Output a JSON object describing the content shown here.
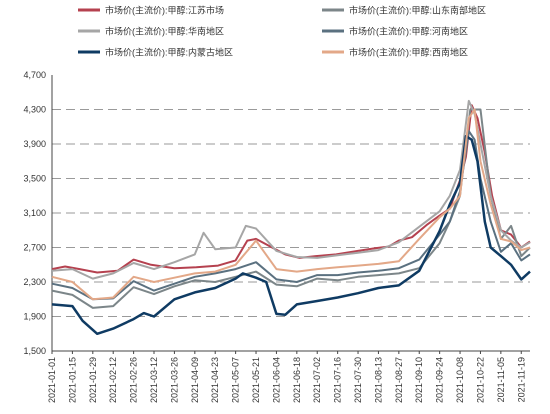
{
  "chart_data": {
    "type": "line",
    "title": "",
    "xlabel": "",
    "ylabel": "",
    "ylim": [
      1500,
      4700
    ],
    "y_ticks": [
      "4,700",
      "4,300",
      "3,900",
      "3,500",
      "3,100",
      "2,700",
      "2,300",
      "1,900",
      "1,500"
    ],
    "y_tick_values": [
      4700,
      4300,
      3900,
      3500,
      3100,
      2700,
      2300,
      1900,
      1500
    ],
    "x_ticks": [
      "2021-01-01",
      "2021-01-15",
      "2021-01-29",
      "2021-02-12",
      "2021-02-26",
      "2021-03-12",
      "2021-03-26",
      "2021-04-09",
      "2021-04-23",
      "2021-05-07",
      "2021-05-21",
      "2021-06-04",
      "2021-06-18",
      "2021-07-02",
      "2021-07-16",
      "2021-07-30",
      "2021-08-13",
      "2021-08-27",
      "2021-09-10",
      "2021-09-24",
      "2021-10-08",
      "2021-10-22",
      "2021-11-05",
      "2021-11-19"
    ],
    "grid": "horizontal dashed",
    "legend_position": "top",
    "series": [
      {
        "name": "市场价(主流价):甲醇:江苏市场",
        "color": "#b5414f",
        "width": 2,
        "x": [
          "2021-01-01",
          "2021-01-10",
          "2021-01-20",
          "2021-02-01",
          "2021-02-15",
          "2021-02-26",
          "2021-03-10",
          "2021-03-26",
          "2021-04-10",
          "2021-04-25",
          "2021-05-07",
          "2021-05-15",
          "2021-05-21",
          "2021-06-01",
          "2021-06-10",
          "2021-06-20",
          "2021-07-01",
          "2021-07-15",
          "2021-07-30",
          "2021-08-10",
          "2021-08-20",
          "2021-08-27",
          "2021-09-05",
          "2021-09-15",
          "2021-09-24",
          "2021-10-01",
          "2021-10-08",
          "2021-10-12",
          "2021-10-16",
          "2021-10-20",
          "2021-10-25",
          "2021-10-30",
          "2021-11-05",
          "2021-11-12",
          "2021-11-19",
          "2021-11-25"
        ],
        "y": [
          2450,
          2480,
          2450,
          2410,
          2430,
          2560,
          2500,
          2460,
          2470,
          2490,
          2550,
          2780,
          2800,
          2700,
          2620,
          2580,
          2600,
          2620,
          2660,
          2690,
          2710,
          2780,
          2820,
          2960,
          3070,
          3150,
          3480,
          3750,
          4350,
          4200,
          3800,
          3300,
          2900,
          2850,
          2700,
          2770
        ]
      },
      {
        "name": "市场价(主流价):甲醇:山东南部地区",
        "color": "#7c8689",
        "width": 2,
        "x": [
          "2021-01-01",
          "2021-01-15",
          "2021-01-29",
          "2021-02-12",
          "2021-02-26",
          "2021-03-12",
          "2021-03-26",
          "2021-04-09",
          "2021-04-23",
          "2021-05-07",
          "2021-05-21",
          "2021-06-04",
          "2021-06-18",
          "2021-07-02",
          "2021-07-16",
          "2021-07-30",
          "2021-08-13",
          "2021-08-27",
          "2021-09-10",
          "2021-09-24",
          "2021-10-01",
          "2021-10-08",
          "2021-10-12",
          "2021-10-15",
          "2021-10-19",
          "2021-10-22",
          "2021-10-29",
          "2021-11-05",
          "2021-11-12",
          "2021-11-19",
          "2021-11-25"
        ],
        "y": [
          2200,
          2150,
          2000,
          2020,
          2240,
          2160,
          2250,
          2320,
          2300,
          2360,
          2420,
          2270,
          2250,
          2340,
          2320,
          2360,
          2380,
          2400,
          2460,
          2750,
          3000,
          3300,
          3900,
          4300,
          4300,
          4300,
          3300,
          2800,
          2950,
          2600,
          2700
        ]
      },
      {
        "name": "市场价(主流价):甲醇:华南地区",
        "color": "#a6a6a6",
        "width": 2,
        "x": [
          "2021-01-01",
          "2021-01-15",
          "2021-01-29",
          "2021-02-12",
          "2021-02-26",
          "2021-03-12",
          "2021-03-26",
          "2021-04-09",
          "2021-04-15",
          "2021-04-23",
          "2021-05-07",
          "2021-05-14",
          "2021-05-21",
          "2021-06-04",
          "2021-06-18",
          "2021-07-02",
          "2021-07-16",
          "2021-07-30",
          "2021-08-13",
          "2021-08-27",
          "2021-09-10",
          "2021-09-24",
          "2021-10-01",
          "2021-10-08",
          "2021-10-14",
          "2021-10-18",
          "2021-10-22",
          "2021-10-29",
          "2021-11-05",
          "2021-11-12",
          "2021-11-19",
          "2021-11-25"
        ],
        "y": [
          2430,
          2450,
          2340,
          2400,
          2520,
          2450,
          2530,
          2620,
          2870,
          2680,
          2700,
          2950,
          2920,
          2660,
          2590,
          2580,
          2610,
          2640,
          2670,
          2760,
          2940,
          3120,
          3300,
          3600,
          4400,
          4250,
          3900,
          3300,
          2900,
          2780,
          2700,
          2760
        ]
      },
      {
        "name": "市场价(主流价):甲醇:河南地区",
        "color": "#5b7180",
        "width": 2,
        "x": [
          "2021-01-01",
          "2021-01-15",
          "2021-01-29",
          "2021-02-12",
          "2021-02-26",
          "2021-03-12",
          "2021-03-26",
          "2021-04-09",
          "2021-04-23",
          "2021-05-07",
          "2021-05-21",
          "2021-06-04",
          "2021-06-18",
          "2021-07-02",
          "2021-07-16",
          "2021-07-30",
          "2021-08-13",
          "2021-08-27",
          "2021-09-10",
          "2021-09-24",
          "2021-10-01",
          "2021-10-08",
          "2021-10-14",
          "2021-10-18",
          "2021-10-22",
          "2021-10-29",
          "2021-11-05",
          "2021-11-12",
          "2021-11-19",
          "2021-11-25"
        ],
        "y": [
          2280,
          2230,
          2100,
          2110,
          2310,
          2200,
          2280,
          2360,
          2400,
          2450,
          2530,
          2330,
          2300,
          2380,
          2380,
          2410,
          2430,
          2460,
          2560,
          2850,
          3000,
          3350,
          4050,
          3950,
          3500,
          3000,
          2650,
          2750,
          2550,
          2620
        ]
      },
      {
        "name": "市场价(主流价):甲醇:内蒙古地区",
        "color": "#0f3b63",
        "width": 2.5,
        "x": [
          "2021-01-01",
          "2021-01-15",
          "2021-01-22",
          "2021-02-01",
          "2021-02-12",
          "2021-02-26",
          "2021-03-05",
          "2021-03-12",
          "2021-03-26",
          "2021-04-09",
          "2021-04-23",
          "2021-05-07",
          "2021-05-12",
          "2021-05-21",
          "2021-05-28",
          "2021-06-04",
          "2021-06-10",
          "2021-06-18",
          "2021-07-02",
          "2021-07-16",
          "2021-07-30",
          "2021-08-13",
          "2021-08-27",
          "2021-09-10",
          "2021-09-24",
          "2021-10-01",
          "2021-10-08",
          "2021-10-12",
          "2021-10-16",
          "2021-10-20",
          "2021-10-25",
          "2021-10-29",
          "2021-11-05",
          "2021-11-12",
          "2021-11-19",
          "2021-11-25"
        ],
        "y": [
          2040,
          2020,
          1850,
          1700,
          1760,
          1870,
          1940,
          1900,
          2100,
          2180,
          2230,
          2340,
          2400,
          2350,
          2300,
          1930,
          1920,
          2040,
          2080,
          2120,
          2170,
          2230,
          2260,
          2430,
          2890,
          3200,
          3450,
          3990,
          3950,
          3700,
          3000,
          2700,
          2600,
          2500,
          2330,
          2420
        ]
      },
      {
        "name": "市场价(主流价):甲醇:西南地区",
        "color": "#e3a888",
        "width": 2,
        "x": [
          "2021-01-01",
          "2021-01-15",
          "2021-01-29",
          "2021-02-12",
          "2021-02-26",
          "2021-03-12",
          "2021-03-26",
          "2021-04-09",
          "2021-04-23",
          "2021-05-07",
          "2021-05-21",
          "2021-06-04",
          "2021-06-18",
          "2021-07-02",
          "2021-07-16",
          "2021-07-30",
          "2021-08-13",
          "2021-08-27",
          "2021-09-10",
          "2021-09-24",
          "2021-10-01",
          "2021-10-08",
          "2021-10-14",
          "2021-10-18",
          "2021-10-22",
          "2021-10-29",
          "2021-11-05",
          "2021-11-12",
          "2021-11-19",
          "2021-11-25"
        ],
        "y": [
          2360,
          2300,
          2100,
          2120,
          2360,
          2300,
          2350,
          2400,
          2420,
          2500,
          2780,
          2450,
          2420,
          2450,
          2470,
          2490,
          2510,
          2540,
          2800,
          3050,
          3150,
          3300,
          4200,
          4300,
          3700,
          3200,
          2800,
          2770,
          2670,
          2700
        ]
      }
    ]
  }
}
